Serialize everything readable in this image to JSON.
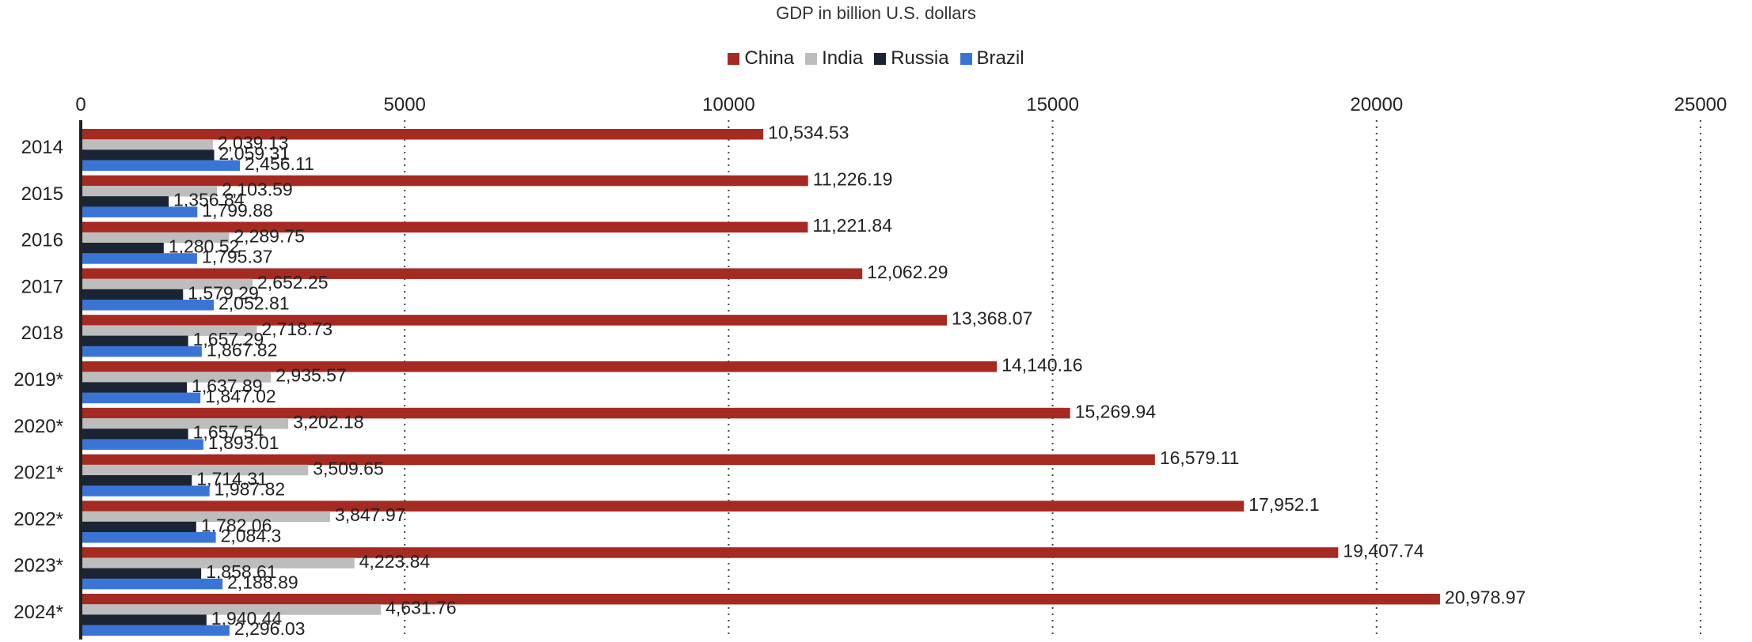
{
  "chart_data": {
    "type": "bar",
    "orientation": "horizontal",
    "title": "GDP in billion U.S. dollars",
    "categories": [
      "2014",
      "2015",
      "2016",
      "2017",
      "2018",
      "2019*",
      "2020*",
      "2021*",
      "2022*",
      "2023*",
      "2024*"
    ],
    "series": [
      {
        "name": "China",
        "color": "#a52a22",
        "values": [
          10534.53,
          11226.19,
          11221.84,
          12062.29,
          13368.07,
          14140.16,
          15269.94,
          16579.11,
          17952.1,
          19407.74,
          20978.97
        ],
        "labels": [
          "10,534.53",
          "11,226.19",
          "11,221.84",
          "12,062.29",
          "13,368.07",
          "14,140.16",
          "15,269.94",
          "16,579.11",
          "17,952.1",
          "19,407.74",
          "20,978.97"
        ]
      },
      {
        "name": "India",
        "color": "#bdbdbd",
        "values": [
          2039.13,
          2103.59,
          2289.75,
          2652.25,
          2718.73,
          2935.57,
          3202.18,
          3509.65,
          3847.97,
          4223.84,
          4631.76
        ],
        "labels": [
          "2,039.13",
          "2,103.59",
          "2,289.75",
          "2,652.25",
          "2,718.73",
          "2,935.57",
          "3,202.18",
          "3,509.65",
          "3,847.97",
          "4,223.84",
          "4,631.76"
        ]
      },
      {
        "name": "Russia",
        "color": "#1b2433",
        "values": [
          2059.31,
          1356.84,
          1280.52,
          1579.29,
          1657.29,
          1637.89,
          1657.54,
          1714.31,
          1782.06,
          1858.61,
          1940.44
        ],
        "labels": [
          "2,059.31",
          "1,356.84",
          "1,280.52",
          "1,579.29",
          "1,657.29",
          "1,637.89",
          "1,657.54",
          "1,714.31",
          "1,782.06",
          "1,858.61",
          "1,940.44"
        ]
      },
      {
        "name": "Brazil",
        "color": "#3a75d6",
        "values": [
          2456.11,
          1799.88,
          1795.37,
          2052.81,
          1867.82,
          1847.02,
          1893.01,
          1987.82,
          2084.3,
          2188.89,
          2296.03
        ],
        "labels": [
          "2,456.11",
          "1,799.88",
          "1,795.37",
          "2,052.81",
          "1,867.82",
          "1,847.02",
          "1,893.01",
          "1,987.82",
          "2,084.3",
          "2,188.89",
          "2,296.03"
        ]
      }
    ],
    "xlim": [
      0,
      25000
    ],
    "xticks": [
      "0",
      "5000",
      "10000",
      "15000",
      "20000",
      "25000"
    ],
    "grid": true,
    "legend_position": "top-center"
  }
}
